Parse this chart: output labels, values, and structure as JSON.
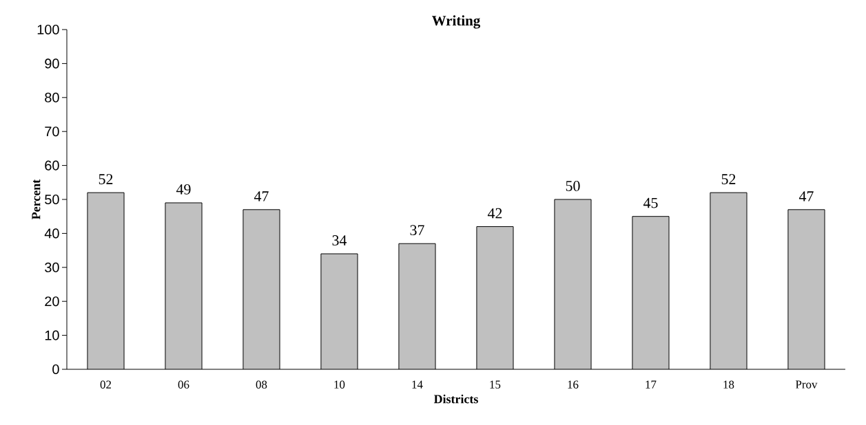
{
  "chart_data": {
    "type": "bar",
    "title": "Writing",
    "xlabel": "Districts",
    "ylabel": "Percent",
    "categories": [
      "02",
      "06",
      "08",
      "10",
      "14",
      "15",
      "16",
      "17",
      "18",
      "Prov"
    ],
    "values": [
      52,
      49,
      47,
      34,
      37,
      42,
      50,
      45,
      52,
      47
    ],
    "color": "#c0c0c0",
    "ylim": [
      0,
      100
    ],
    "yticks": [
      0,
      10,
      20,
      30,
      40,
      50,
      60,
      70,
      80,
      90,
      100
    ],
    "data_labels": true
  }
}
